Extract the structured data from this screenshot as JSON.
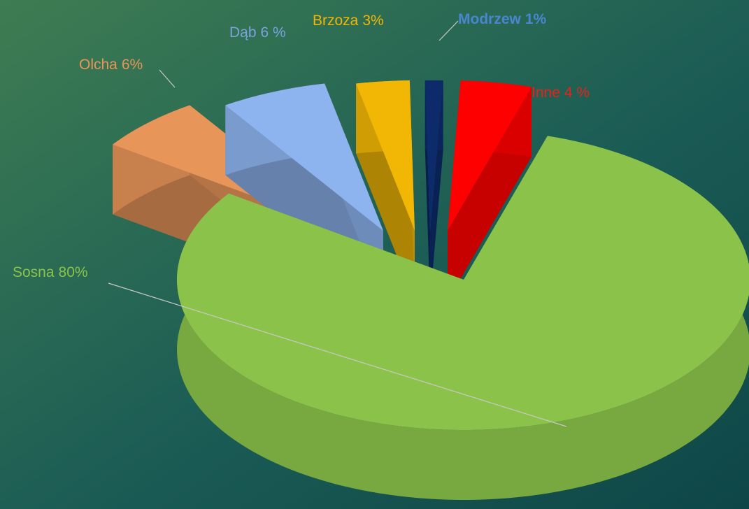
{
  "chart_data": {
    "type": "pie3d",
    "categories": [
      "Inne",
      "Sosna",
      "Olcha",
      "Dąb",
      "Brzoza",
      "Modrzew"
    ],
    "values": [
      4,
      80,
      6,
      6,
      3,
      1
    ],
    "value_labels": [
      "4 %",
      "80%",
      "6%",
      "6 %",
      "3%",
      "1%"
    ],
    "colors": [
      "#ff0000",
      "#8bc34a",
      "#e8955a",
      "#8db4ef",
      "#f2b705",
      "#0d2a6b"
    ],
    "label_colors": [
      "#e8211a",
      "#8bc34a",
      "#e8955a",
      "#7ba3dc",
      "#f2b705",
      "#4a86d0"
    ]
  }
}
